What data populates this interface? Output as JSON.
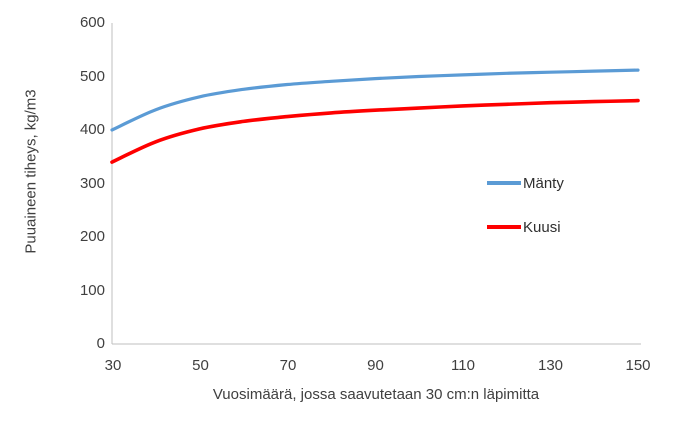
{
  "chart_data": {
    "type": "line",
    "title": "",
    "xlabel": "Vuosimäärä, jossa saavutetaan 30 cm:n läpimitta",
    "ylabel": "Puuaineen tiheys, kg/m3",
    "xlim": [
      30,
      150
    ],
    "ylim": [
      0,
      600
    ],
    "grid": false,
    "legend_position": "right-middle",
    "xticks": [
      "30",
      "50",
      "70",
      "90",
      "110",
      "130",
      "150"
    ],
    "yticks_top_to_bottom": [
      "600",
      "500",
      "400",
      "300",
      "200",
      "100",
      "0"
    ],
    "x": [
      30,
      40,
      50,
      60,
      70,
      80,
      90,
      100,
      110,
      120,
      130,
      140,
      150
    ],
    "series": [
      {
        "name": "Mänty",
        "color": "#5B9BD5",
        "line_width": 3.2,
        "values": [
          400,
          438,
          462,
          476,
          485,
          491,
          496,
          500,
          503,
          506,
          508,
          510,
          512
        ]
      },
      {
        "name": "Kuusi",
        "color": "#FE0000",
        "line_width": 3.6,
        "values": [
          340,
          378,
          402,
          416,
          425,
          432,
          437,
          441,
          445,
          448,
          451,
          453,
          455
        ]
      }
    ],
    "axis_line_color": "#BFBFBF"
  }
}
